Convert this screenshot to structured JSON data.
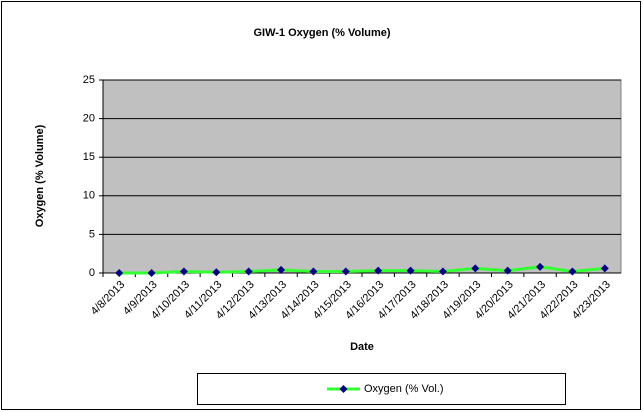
{
  "chart_data": {
    "type": "line",
    "title": "GIW-1 Oxygen (% Volume)",
    "x_label": "Date",
    "y_label": "Oxygen (% Volume)",
    "categories": [
      "4/8/2013",
      "4/9/2013",
      "4/10/2013",
      "4/11/2013",
      "4/12/2013",
      "4/13/2013",
      "4/14/2013",
      "4/15/2013",
      "4/16/2013",
      "4/17/2013",
      "4/18/2013",
      "4/19/2013",
      "4/20/2013",
      "4/21/2013",
      "4/22/2013",
      "4/23/2013"
    ],
    "series": [
      {
        "name": "Oxygen (% Vol.)",
        "color": "#33ff33",
        "marker_color": "#000080",
        "values": [
          0,
          0,
          0.2,
          0.1,
          0.2,
          0.4,
          0.2,
          0.2,
          0.3,
          0.3,
          0.2,
          0.6,
          0.3,
          0.8,
          0.2,
          0.6
        ]
      }
    ],
    "ylim": [
      0,
      25
    ],
    "yticks": [
      0,
      5,
      10,
      15,
      20,
      25
    ],
    "grid": true,
    "legend": "bottom",
    "plot_background": "#c0c0c0"
  }
}
